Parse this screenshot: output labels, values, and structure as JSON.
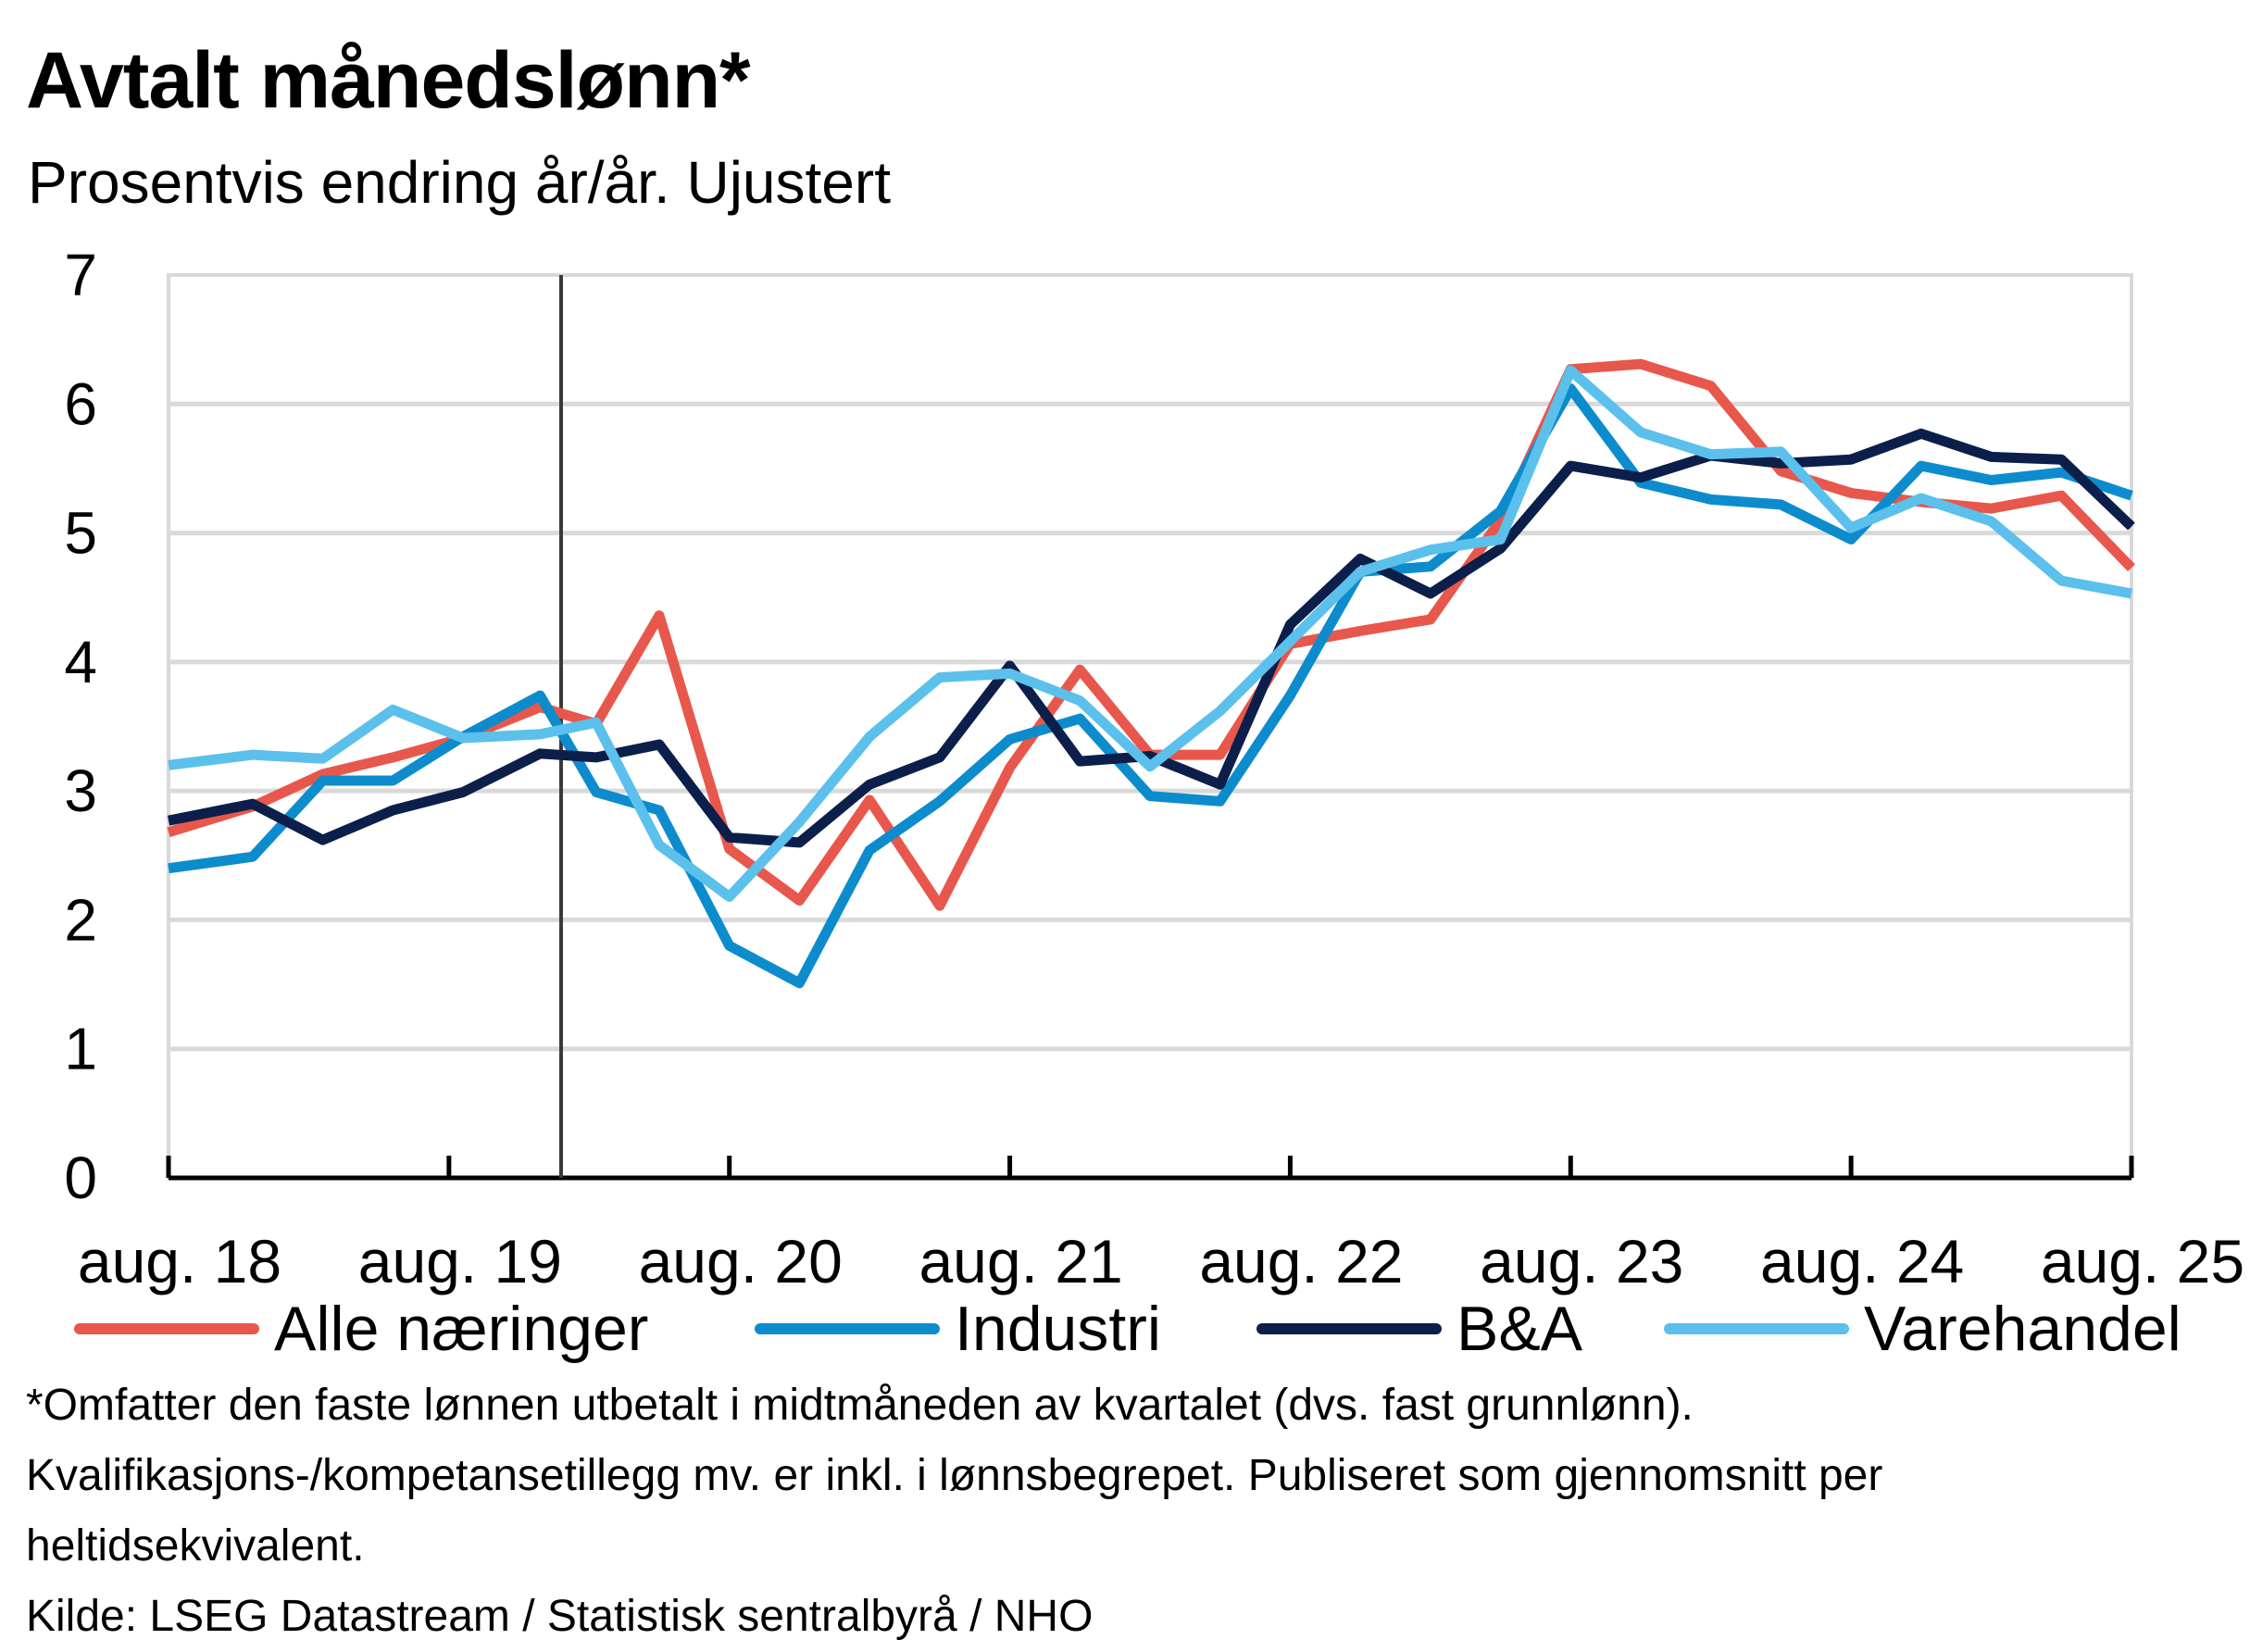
{
  "chart_data": {
    "type": "line",
    "title": "Avtalt månedslønn*",
    "subtitle": "Prosentvis endring år/år. Ujustert",
    "xlabel": "",
    "ylabel": "",
    "ylim": [
      0,
      7
    ],
    "yticks": [
      "0",
      "1",
      "2",
      "3",
      "4",
      "5",
      "6",
      "7"
    ],
    "grid": true,
    "legend_position": "bottom",
    "x_categories": [
      "aug. 18",
      "aug. 19",
      "aug. 20",
      "aug. 21",
      "aug. 22",
      "aug. 23",
      "aug. 24",
      "aug. 25"
    ],
    "x_note": "Quarterly observations; x value 0 = aug. 18, 4 per year",
    "x_range": [
      0,
      28
    ],
    "vertical_marker_x": 5.6,
    "x": [
      0,
      1.2,
      2.2,
      3.2,
      4.2,
      5.3,
      6.1,
      7,
      8,
      9,
      10,
      11,
      12,
      13,
      14,
      15,
      16,
      17,
      18,
      19,
      20,
      21,
      22,
      23,
      24,
      25,
      26,
      27,
      28
    ],
    "series": [
      {
        "name": "Alle næringer",
        "color": "#e8574b",
        "values": [
          2.68,
          2.88,
          3.13,
          3.26,
          3.41,
          3.65,
          3.52,
          4.36,
          2.55,
          2.15,
          2.93,
          2.11,
          3.18,
          3.94,
          3.28,
          3.28,
          4.14,
          4.24,
          4.33,
          5.1,
          6.27,
          6.31,
          6.14,
          5.48,
          5.31,
          5.24,
          5.19,
          5.29,
          4.73
        ]
      },
      {
        "name": "Industri",
        "color": "#0d8ccd",
        "values": [
          2.4,
          2.49,
          3.08,
          3.08,
          3.42,
          3.74,
          2.99,
          2.85,
          1.8,
          1.51,
          2.54,
          2.92,
          3.4,
          3.56,
          2.96,
          2.92,
          3.74,
          4.7,
          4.74,
          5.17,
          6.12,
          5.39,
          5.26,
          5.22,
          4.95,
          5.52,
          5.41,
          5.47,
          5.29
        ]
      },
      {
        "name": "B&A",
        "color": "#0b1f4a",
        "values": [
          2.77,
          2.9,
          2.62,
          2.85,
          2.99,
          3.29,
          3.26,
          3.36,
          2.64,
          2.6,
          3.05,
          3.26,
          3.97,
          3.23,
          3.27,
          3.05,
          4.29,
          4.8,
          4.53,
          4.88,
          5.52,
          5.43,
          5.6,
          5.54,
          5.57,
          5.77,
          5.59,
          5.57,
          5.05
        ]
      },
      {
        "name": "Varehandel",
        "color": "#5bc0eb",
        "values": [
          3.2,
          3.28,
          3.25,
          3.63,
          3.41,
          3.44,
          3.53,
          2.58,
          2.18,
          2.76,
          3.42,
          3.88,
          3.91,
          3.7,
          3.19,
          3.62,
          4.16,
          4.7,
          4.87,
          4.95,
          6.26,
          5.78,
          5.61,
          5.63,
          5.04,
          5.27,
          5.09,
          4.63,
          4.53
        ]
      }
    ]
  },
  "footnotes": [
    "*Omfatter den faste lønnen utbetalt i midtmåneden av kvartalet (dvs. fast grunnlønn).",
    "Kvalifikasjons-/kompetansetillegg mv. er inkl. i lønnsbegrepet. Publiseret som gjennomsnitt per",
    "heltidsekvivalent.",
    "Kilde: LSEG Datastream / Statistisk sentralbyrå / NHO"
  ]
}
